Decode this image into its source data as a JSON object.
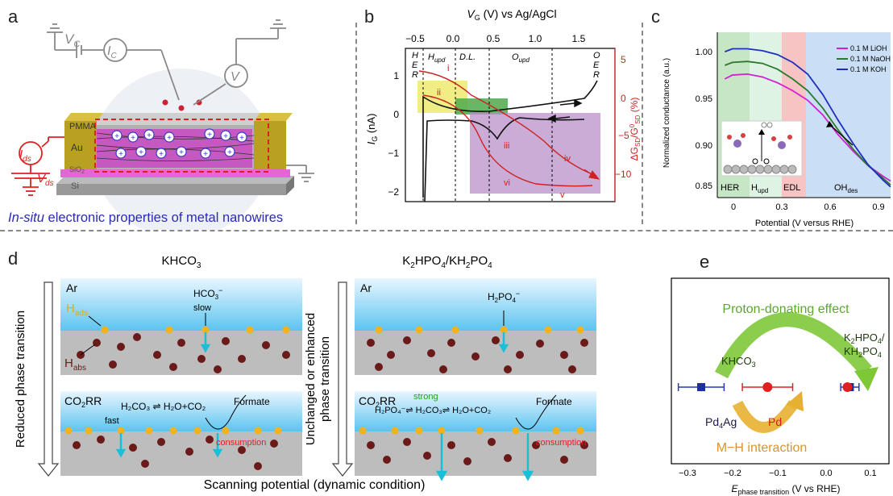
{
  "panels": {
    "a": "a",
    "b": "b",
    "c": "c",
    "d": "d",
    "e": "e"
  },
  "panel_a": {
    "vc": "V",
    "vc_sub": "C",
    "ic": "I",
    "ic_sub": "C",
    "v": "V",
    "ids": "I",
    "ids_sub": "ds",
    "vds": "V",
    "vds_sub": "ds",
    "pmma": "PMMA",
    "au": "Au",
    "sio2": "SiO",
    "sio2_sub": "2",
    "si": "Si",
    "caption_italic": "In-situ",
    "caption_rest": " electronic properties of metal nanowires"
  },
  "panel_b": {
    "top_axis_label": "V",
    "top_axis_sub": "G",
    "top_axis_rest": " (V) vs Ag/AgCl",
    "top_ticks": [
      "−0.5",
      "0.0",
      "0.5",
      "1.0",
      "1.5"
    ],
    "left_ticks": [
      "1",
      "0",
      "−1",
      "−2"
    ],
    "right_ticks": [
      "5",
      "0",
      "−5",
      "−10"
    ],
    "left_label": "I",
    "left_label_sub": "G",
    "left_label_rest": " (nA)",
    "right_label": "ΔG",
    "right_label_sub": "SD",
    "right_label_mid": "/G",
    "right_label_sup": "0",
    "right_label_sub2": "SD",
    "right_label_rest": " (%)",
    "regions": [
      "H\nE\nR",
      "H",
      "D.L.",
      "O",
      "O\nE\nR"
    ],
    "region_hupd_sub": "upd",
    "region_oupd_sub": "upd",
    "roman": [
      "i",
      "ii",
      "iii",
      "iv",
      "v",
      "vi"
    ]
  },
  "panel_c": {
    "ylabel": "Normalized conductance (a.u.)",
    "xlabel": "Potential (V versus RHE)",
    "y_ticks": [
      "1.00",
      "0.95",
      "0.90",
      "0.85"
    ],
    "x_ticks": [
      "0",
      "0.3",
      "0.6",
      "0.9"
    ],
    "legend": [
      "0.1 M LiOH",
      "0.1 M NaOH",
      "0.1 M KOH"
    ],
    "legend_colors": [
      "#d21fd2",
      "#2a7a2a",
      "#1f2fbf"
    ],
    "regions": [
      "HER",
      "H",
      "EDL",
      "OH"
    ],
    "hupd_sub": "upd",
    "ohdes_sub": "des"
  },
  "panel_d": {
    "title_left": "KHCO",
    "title_left_sub": "3",
    "title_right_1": "K",
    "title_right_sub1": "2",
    "title_right_2": "HPO",
    "title_right_sub2": "4",
    "title_right_3": "/KH",
    "title_right_sub3": "2",
    "title_right_4": "PO",
    "title_right_sub4": "4",
    "ar": "Ar",
    "hads": "H",
    "hads_sub": "ads",
    "habs": "H",
    "habs_sub": "abs",
    "hco3": "HCO",
    "hco3_sub": "3",
    "hco3_sup": "−",
    "slow": "slow",
    "h2po4": "H",
    "h2po4_sub1": "2",
    "h2po4_mid": "PO",
    "h2po4_sub2": "4",
    "h2po4_sup": "−",
    "co2rr": "CO",
    "co2rr_sub": "2",
    "co2rr_rest": "RR",
    "fast": "fast",
    "strong": "strong",
    "eq_left": "H₂CO₃ ⇌ H₂O+CO₂",
    "eq_right": "H₂PO₄⁻⇌ H₂CO₃⇌ H₂O+CO₂",
    "formate": "Formate",
    "consumption": "consumption",
    "side_left": "Reduced phase transition",
    "side_right_1": "Unchanged or enhanced",
    "side_right_2": "phase transition",
    "bottom": "Scanning potential (dynamic condition)"
  },
  "panel_e": {
    "proton": "Proton-donating effect",
    "mh": "M−H interaction",
    "khco3": "KHCO",
    "khco3_sub": "3",
    "k2hpo4_line1": "K",
    "k2hpo4_line1_sub": "2",
    "k2hpo4_line1_rest": "HPO",
    "k2hpo4_line1_sub2": "4",
    "k2hpo4_line1_end": "/",
    "k2hpo4_line2": "KH",
    "k2hpo4_line2_sub": "2",
    "k2hpo4_line2_rest": "PO",
    "k2hpo4_line2_sub2": "4",
    "pd4ag": "Pd",
    "pd4ag_sub": "4",
    "pd4ag_rest": "Ag",
    "pd": "Pd",
    "x_ticks": [
      "−0.3",
      "−0.2",
      "−0.1",
      "0.0",
      "0.1"
    ],
    "xlabel": "E",
    "xlabel_sub": "phase transition",
    "xlabel_rest": " (V vs RHE)"
  },
  "chart_data": [
    {
      "type": "line",
      "panel": "c",
      "xlabel": "Potential (V versus RHE)",
      "ylabel": "Normalized conductance (a.u.)",
      "xlim": [
        -0.1,
        1.05
      ],
      "ylim": [
        0.84,
        1.01
      ],
      "series": [
        {
          "name": "0.1 M LiOH",
          "x": [
            -0.05,
            0.0,
            0.1,
            0.2,
            0.3,
            0.4,
            0.5,
            0.6,
            0.7,
            0.8,
            0.9,
            1.0,
            1.05
          ],
          "y": [
            0.962,
            0.966,
            0.967,
            0.964,
            0.958,
            0.95,
            0.94,
            0.925,
            0.905,
            0.888,
            0.873,
            0.862,
            0.857
          ]
        },
        {
          "name": "0.1 M NaOH",
          "x": [
            -0.05,
            0.0,
            0.1,
            0.2,
            0.3,
            0.4,
            0.5,
            0.6,
            0.7,
            0.8,
            0.9,
            1.0,
            1.05
          ],
          "y": [
            0.976,
            0.979,
            0.98,
            0.978,
            0.972,
            0.962,
            0.95,
            0.932,
            0.91,
            0.89,
            0.873,
            0.86,
            0.853
          ]
        },
        {
          "name": "0.1 M KOH",
          "x": [
            -0.05,
            0.0,
            0.1,
            0.2,
            0.3,
            0.4,
            0.5,
            0.6,
            0.7,
            0.8,
            0.9,
            1.0,
            1.05
          ],
          "y": [
            0.99,
            0.993,
            0.993,
            0.991,
            0.987,
            0.979,
            0.967,
            0.946,
            0.92,
            0.896,
            0.874,
            0.858,
            0.851
          ]
        }
      ]
    },
    {
      "type": "scatter",
      "panel": "e",
      "xlim": [
        -0.35,
        0.12
      ],
      "series": [
        {
          "name": "Pd4Ag",
          "x": [
            -0.27
          ],
          "xerr": [
            0.05
          ]
        },
        {
          "name": "Pd",
          "x": [
            -0.125
          ],
          "xerr": [
            0.055
          ]
        },
        {
          "name": "",
          "x": [
            0.055
          ],
          "xerr": [
            0.02
          ]
        }
      ]
    }
  ]
}
